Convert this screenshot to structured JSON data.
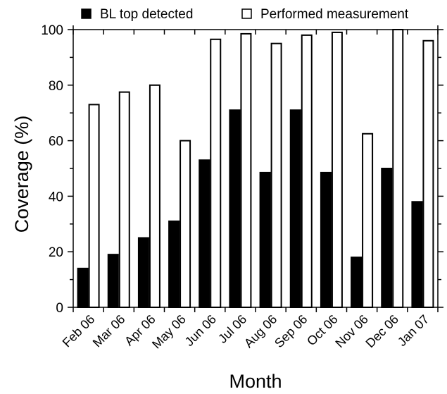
{
  "chart_data": {
    "type": "bar",
    "xlabel": "Month",
    "ylabel": "Coverage (%)",
    "ylim": [
      0,
      100
    ],
    "yticks": [
      0,
      20,
      40,
      60,
      80,
      100
    ],
    "grid": false,
    "legend_position": "top",
    "categories": [
      "Feb 06",
      "Mar 06",
      "Apr 06",
      "May 06",
      "Jun 06",
      "Jul 06",
      "Aug 06",
      "Sep 06",
      "Oct 06",
      "Nov 06",
      "Dec 06",
      "Jan 07"
    ],
    "series": [
      {
        "name": "BL top detected",
        "color": "#000000",
        "values": [
          14,
          19,
          25,
          31,
          53,
          71,
          48.5,
          71,
          48.5,
          18,
          50,
          38
        ]
      },
      {
        "name": "Performed measurement",
        "color": "#ffffff",
        "values": [
          73,
          77.5,
          80,
          60,
          96.5,
          98.5,
          95,
          98,
          99,
          62.5,
          100,
          96
        ]
      }
    ]
  }
}
